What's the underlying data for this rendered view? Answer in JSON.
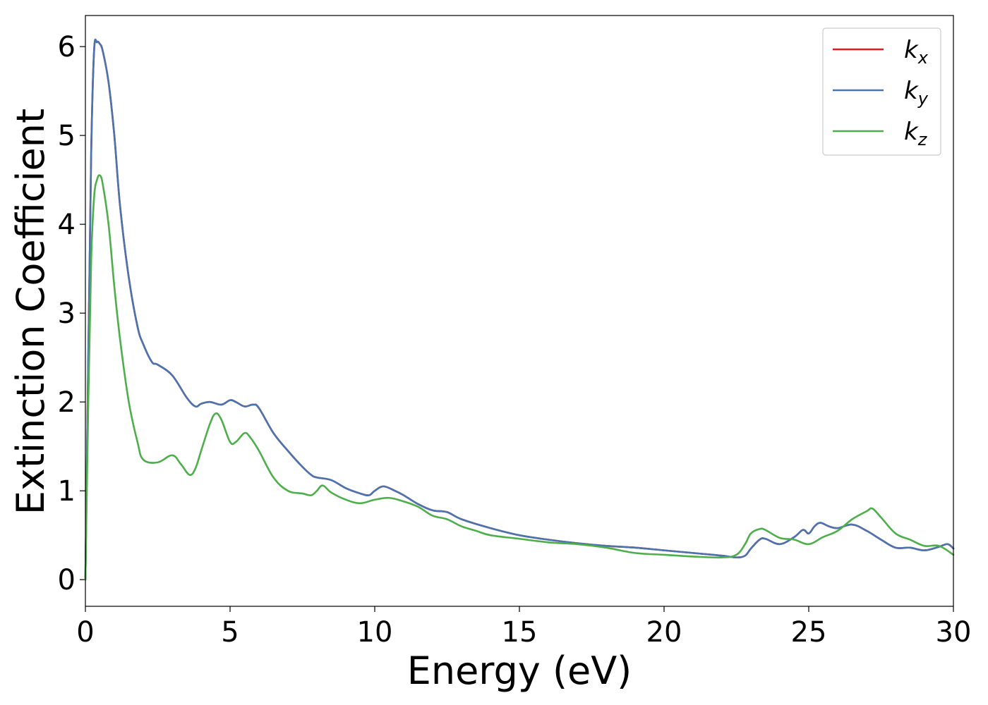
{
  "chart_data": {
    "type": "line",
    "xlabel": "Energy (eV)",
    "ylabel": "Extinction Coefficient",
    "xlim": [
      0,
      30
    ],
    "ylim": [
      -0.3,
      6.35
    ],
    "xticks": [
      0,
      5,
      10,
      15,
      20,
      25,
      30
    ],
    "yticks": [
      0,
      1,
      2,
      3,
      4,
      5,
      6
    ],
    "grid": false,
    "legend_position": "top-right",
    "series": [
      {
        "name": "k_x",
        "label_base": "k",
        "label_sub": "x",
        "color": "#e41a1c",
        "x": [
          0,
          0.1,
          0.2,
          0.3,
          0.4,
          0.5,
          0.6,
          0.8,
          1.0,
          1.2,
          1.5,
          1.8,
          2.0,
          2.3,
          2.5,
          3.0,
          3.5,
          3.8,
          4.0,
          4.3,
          4.7,
          5.0,
          5.2,
          5.5,
          5.8,
          6.0,
          6.5,
          7.0,
          7.5,
          7.8,
          8.0,
          8.5,
          9.0,
          9.5,
          9.8,
          10.0,
          10.3,
          10.7,
          11.0,
          11.5,
          12.0,
          12.5,
          13.0,
          14.0,
          15.0,
          16.0,
          17.0,
          18.0,
          19.0,
          20.0,
          21.0,
          22.0,
          22.5,
          22.8,
          23.0,
          23.3,
          23.5,
          24.0,
          24.5,
          24.8,
          25.0,
          25.2,
          25.4,
          25.7,
          26.0,
          26.5,
          27.0,
          27.5,
          28.0,
          28.5,
          29.0,
          29.5,
          29.8,
          30.0
        ],
        "values": [
          0,
          2.5,
          4.8,
          5.95,
          6.05,
          6.03,
          5.95,
          5.6,
          5.0,
          4.2,
          3.4,
          2.85,
          2.65,
          2.45,
          2.42,
          2.3,
          2.05,
          1.95,
          1.98,
          2.0,
          1.97,
          2.02,
          2.0,
          1.95,
          1.97,
          1.93,
          1.65,
          1.45,
          1.27,
          1.18,
          1.15,
          1.12,
          1.03,
          0.97,
          0.95,
          1.0,
          1.05,
          1.0,
          0.95,
          0.85,
          0.78,
          0.76,
          0.68,
          0.58,
          0.5,
          0.45,
          0.41,
          0.38,
          0.36,
          0.33,
          0.3,
          0.27,
          0.25,
          0.27,
          0.35,
          0.45,
          0.46,
          0.4,
          0.48,
          0.56,
          0.52,
          0.6,
          0.64,
          0.6,
          0.58,
          0.62,
          0.55,
          0.45,
          0.36,
          0.36,
          0.33,
          0.37,
          0.4,
          0.35
        ]
      },
      {
        "name": "k_y",
        "label_base": "k",
        "label_sub": "y",
        "color": "#4a74b0",
        "x": [
          0,
          0.1,
          0.2,
          0.3,
          0.4,
          0.5,
          0.6,
          0.8,
          1.0,
          1.2,
          1.5,
          1.8,
          2.0,
          2.3,
          2.5,
          3.0,
          3.5,
          3.8,
          4.0,
          4.3,
          4.7,
          5.0,
          5.2,
          5.5,
          5.8,
          6.0,
          6.5,
          7.0,
          7.5,
          7.8,
          8.0,
          8.5,
          9.0,
          9.5,
          9.8,
          10.0,
          10.3,
          10.7,
          11.0,
          11.5,
          12.0,
          12.5,
          13.0,
          14.0,
          15.0,
          16.0,
          17.0,
          18.0,
          19.0,
          20.0,
          21.0,
          22.0,
          22.5,
          22.8,
          23.0,
          23.3,
          23.5,
          24.0,
          24.5,
          24.8,
          25.0,
          25.2,
          25.4,
          25.7,
          26.0,
          26.5,
          27.0,
          27.5,
          28.0,
          28.5,
          29.0,
          29.5,
          29.8,
          30.0
        ],
        "values": [
          0,
          2.5,
          4.8,
          5.95,
          6.05,
          6.03,
          5.95,
          5.6,
          5.0,
          4.2,
          3.4,
          2.85,
          2.65,
          2.45,
          2.42,
          2.3,
          2.05,
          1.95,
          1.98,
          2.0,
          1.97,
          2.02,
          2.0,
          1.95,
          1.97,
          1.93,
          1.65,
          1.45,
          1.27,
          1.18,
          1.15,
          1.12,
          1.03,
          0.97,
          0.95,
          1.0,
          1.05,
          1.0,
          0.95,
          0.85,
          0.78,
          0.76,
          0.68,
          0.58,
          0.5,
          0.45,
          0.41,
          0.38,
          0.36,
          0.33,
          0.3,
          0.27,
          0.25,
          0.27,
          0.35,
          0.45,
          0.46,
          0.4,
          0.48,
          0.56,
          0.52,
          0.6,
          0.64,
          0.6,
          0.58,
          0.62,
          0.55,
          0.45,
          0.36,
          0.36,
          0.33,
          0.37,
          0.4,
          0.35
        ]
      },
      {
        "name": "k_z",
        "label_base": "k",
        "label_sub": "z",
        "color": "#4daf4a",
        "x": [
          0,
          0.1,
          0.2,
          0.3,
          0.4,
          0.5,
          0.6,
          0.8,
          1.0,
          1.2,
          1.5,
          1.8,
          2.0,
          2.5,
          3.0,
          3.3,
          3.6,
          3.8,
          4.0,
          4.3,
          4.5,
          4.7,
          5.0,
          5.2,
          5.5,
          5.7,
          6.0,
          6.5,
          7.0,
          7.5,
          7.8,
          8.0,
          8.2,
          8.5,
          9.0,
          9.5,
          10.0,
          10.5,
          11.0,
          11.5,
          12.0,
          12.5,
          13.0,
          13.5,
          14.0,
          15.0,
          16.0,
          17.0,
          18.0,
          19.0,
          20.0,
          21.0,
          22.0,
          22.5,
          22.8,
          23.0,
          23.3,
          23.5,
          24.0,
          24.5,
          25.0,
          25.5,
          26.0,
          26.5,
          27.0,
          27.2,
          27.5,
          28.0,
          28.5,
          29.0,
          29.5,
          30.0
        ],
        "values": [
          0,
          2.0,
          3.6,
          4.3,
          4.5,
          4.55,
          4.45,
          4.0,
          3.3,
          2.7,
          2.0,
          1.55,
          1.35,
          1.32,
          1.4,
          1.3,
          1.18,
          1.25,
          1.45,
          1.75,
          1.87,
          1.8,
          1.55,
          1.55,
          1.65,
          1.6,
          1.45,
          1.15,
          1.0,
          0.97,
          0.95,
          1.0,
          1.06,
          0.98,
          0.9,
          0.86,
          0.9,
          0.92,
          0.88,
          0.82,
          0.72,
          0.68,
          0.6,
          0.55,
          0.5,
          0.46,
          0.42,
          0.4,
          0.36,
          0.3,
          0.28,
          0.26,
          0.25,
          0.28,
          0.4,
          0.52,
          0.57,
          0.56,
          0.47,
          0.45,
          0.4,
          0.48,
          0.55,
          0.68,
          0.77,
          0.8,
          0.7,
          0.52,
          0.45,
          0.38,
          0.38,
          0.28
        ]
      }
    ]
  }
}
